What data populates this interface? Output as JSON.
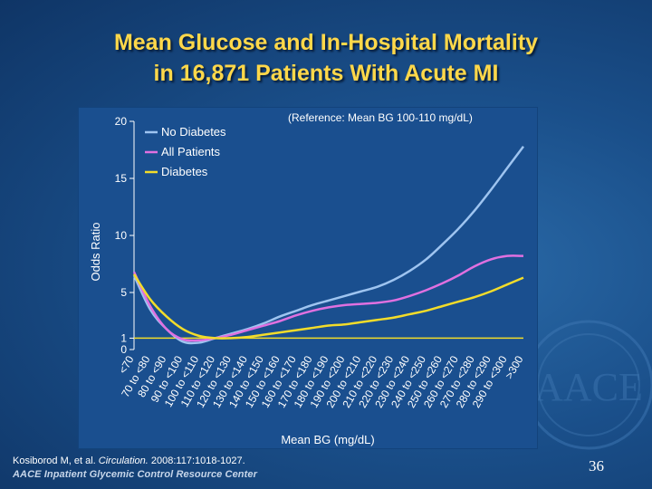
{
  "slide": {
    "title_line1": "Mean Glucose and In-Hospital Mortality",
    "title_line2": "in 16,871 Patients With Acute MI",
    "reference_note": "(Reference: Mean BG 100-110 mg/dL)",
    "citation_authors": "Kosiborod M, et al.",
    "citation_journal": "Circulation.",
    "citation_details": "2008:117:1018-1027.",
    "footer": "AACE Inpatient Glycemic Control Resource Center",
    "page_number": "36",
    "watermark_letters": "AACE"
  },
  "colors": {
    "title": "#ffd84a",
    "no_diabetes": "#9ec4f0",
    "all_patients": "#e070e0",
    "diabetes": "#f2dc2a",
    "reference_line": "#f2dc2a"
  },
  "chart_data": {
    "type": "line",
    "xlabel": "Mean BG (mg/dL)",
    "ylabel": "Odds Ratio",
    "ylim": [
      0,
      20
    ],
    "yticks": [
      0,
      1,
      5,
      10,
      15,
      20
    ],
    "reference_line": 1,
    "categories": [
      "<70",
      "70 to <80",
      "80 to <90",
      "90 to <100",
      "100 to <110",
      "110 to <120",
      "120 to <130",
      "130 to <140",
      "140 to <150",
      "150 to <160",
      "160 to <170",
      "170 to <180",
      "180 to <190",
      "190 to <200",
      "200 to <210",
      "210 to <220",
      "220 to <230",
      "230 to <240",
      "240 to <250",
      "250 to <260",
      "260 to <270",
      "270 to <280",
      "280 to <290",
      "290 to <300",
      ">300"
    ],
    "legend": [
      "No Diabetes",
      "All Patients",
      "Diabetes"
    ],
    "legend_position": "top-left",
    "series": [
      {
        "name": "No Diabetes",
        "color_key": "no_diabetes",
        "values": [
          6.5,
          3.5,
          1.8,
          0.7,
          0.6,
          1.0,
          1.4,
          1.8,
          2.3,
          2.9,
          3.4,
          3.9,
          4.3,
          4.7,
          5.1,
          5.5,
          6.1,
          6.9,
          7.9,
          9.2,
          10.6,
          12.2,
          14.0,
          15.9,
          17.8
        ]
      },
      {
        "name": "All Patients",
        "color_key": "all_patients",
        "values": [
          6.8,
          3.8,
          1.8,
          0.9,
          0.8,
          1.0,
          1.3,
          1.7,
          2.1,
          2.5,
          3.0,
          3.4,
          3.7,
          3.9,
          4.0,
          4.1,
          4.3,
          4.7,
          5.2,
          5.8,
          6.5,
          7.3,
          7.9,
          8.2,
          8.2
        ]
      },
      {
        "name": "Diabetes",
        "color_key": "diabetes",
        "values": [
          6.6,
          4.4,
          2.9,
          1.8,
          1.2,
          1.0,
          1.0,
          1.1,
          1.3,
          1.5,
          1.7,
          1.9,
          2.1,
          2.2,
          2.4,
          2.6,
          2.8,
          3.1,
          3.4,
          3.8,
          4.2,
          4.6,
          5.1,
          5.7,
          6.3
        ]
      }
    ]
  }
}
